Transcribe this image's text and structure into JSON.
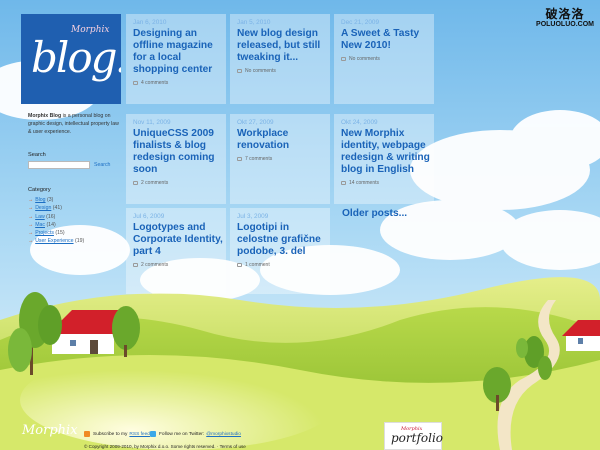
{
  "watermark": {
    "chinese": "破洛洛",
    "url": "POLUOLUO.COM"
  },
  "logo": {
    "brand": "Morphix",
    "word": "blog!"
  },
  "sidebar": {
    "about_name": "Morphix Blog",
    "about_text": "is a personal blog on graphic design, intellectual property law & user experience.",
    "search_label": "Search",
    "search_button": "Search",
    "search_placeholder": "",
    "category_label": "Category",
    "categories": [
      {
        "name": "Blog",
        "count": "(3)"
      },
      {
        "name": "Design",
        "count": "(41)"
      },
      {
        "name": "Law",
        "count": "(16)"
      },
      {
        "name": "Mac",
        "count": "(14)"
      },
      {
        "name": "Projects",
        "count": "(15)"
      },
      {
        "name": "User Experience",
        "count": "(19)"
      }
    ]
  },
  "posts": [
    {
      "date": "Jan 6, 2010",
      "title": "Designing an offline magazine for a local shopping center",
      "comments": "4 comments"
    },
    {
      "date": "Jan 5, 2010",
      "title": "New blog design released, but still tweaking it...",
      "comments": "No comments"
    },
    {
      "date": "Dec 21, 2009",
      "title": "A Sweet & Tasty New 2010!",
      "comments": "No comments"
    },
    {
      "date": "Nov 11, 2009",
      "title": "UniqueCSS 2009 finalists & blog redesign coming soon",
      "comments": "2 comments"
    },
    {
      "date": "Okt 27, 2009",
      "title": "Workplace renovation",
      "comments": "7 comments"
    },
    {
      "date": "Okt 24, 2009",
      "title": "New Morphix identity, webpage redesign & writing blog in English",
      "comments": "14 comments"
    },
    {
      "date": "Jul 6, 2009",
      "title": "Logotypes and Corporate Identity, part 4",
      "comments": "2 comments"
    },
    {
      "date": "Jul 3, 2009",
      "title": "Logotipi in celostne grafične podobe, 3. del",
      "comments": "1 comment"
    }
  ],
  "older_posts": "Older posts...",
  "footer": {
    "logo": "Morphix",
    "subscribe_text": "Subscribe to my",
    "rss_link": "RSS feed",
    "follow_text": "Follow me on Twitter:",
    "twitter_link": "@morphixstudio",
    "copyright": "© Copyright 2009-2010, by Morphix d.o.o. Some rights reserved. · Terms of use",
    "portfolio_brand": "Morphix",
    "portfolio_word": "portfolio"
  },
  "colors": {
    "link": "#1a63b8",
    "logo_bg": "#1f5fb0",
    "sky": "#8ec8ee",
    "grass": "#9cc935"
  }
}
